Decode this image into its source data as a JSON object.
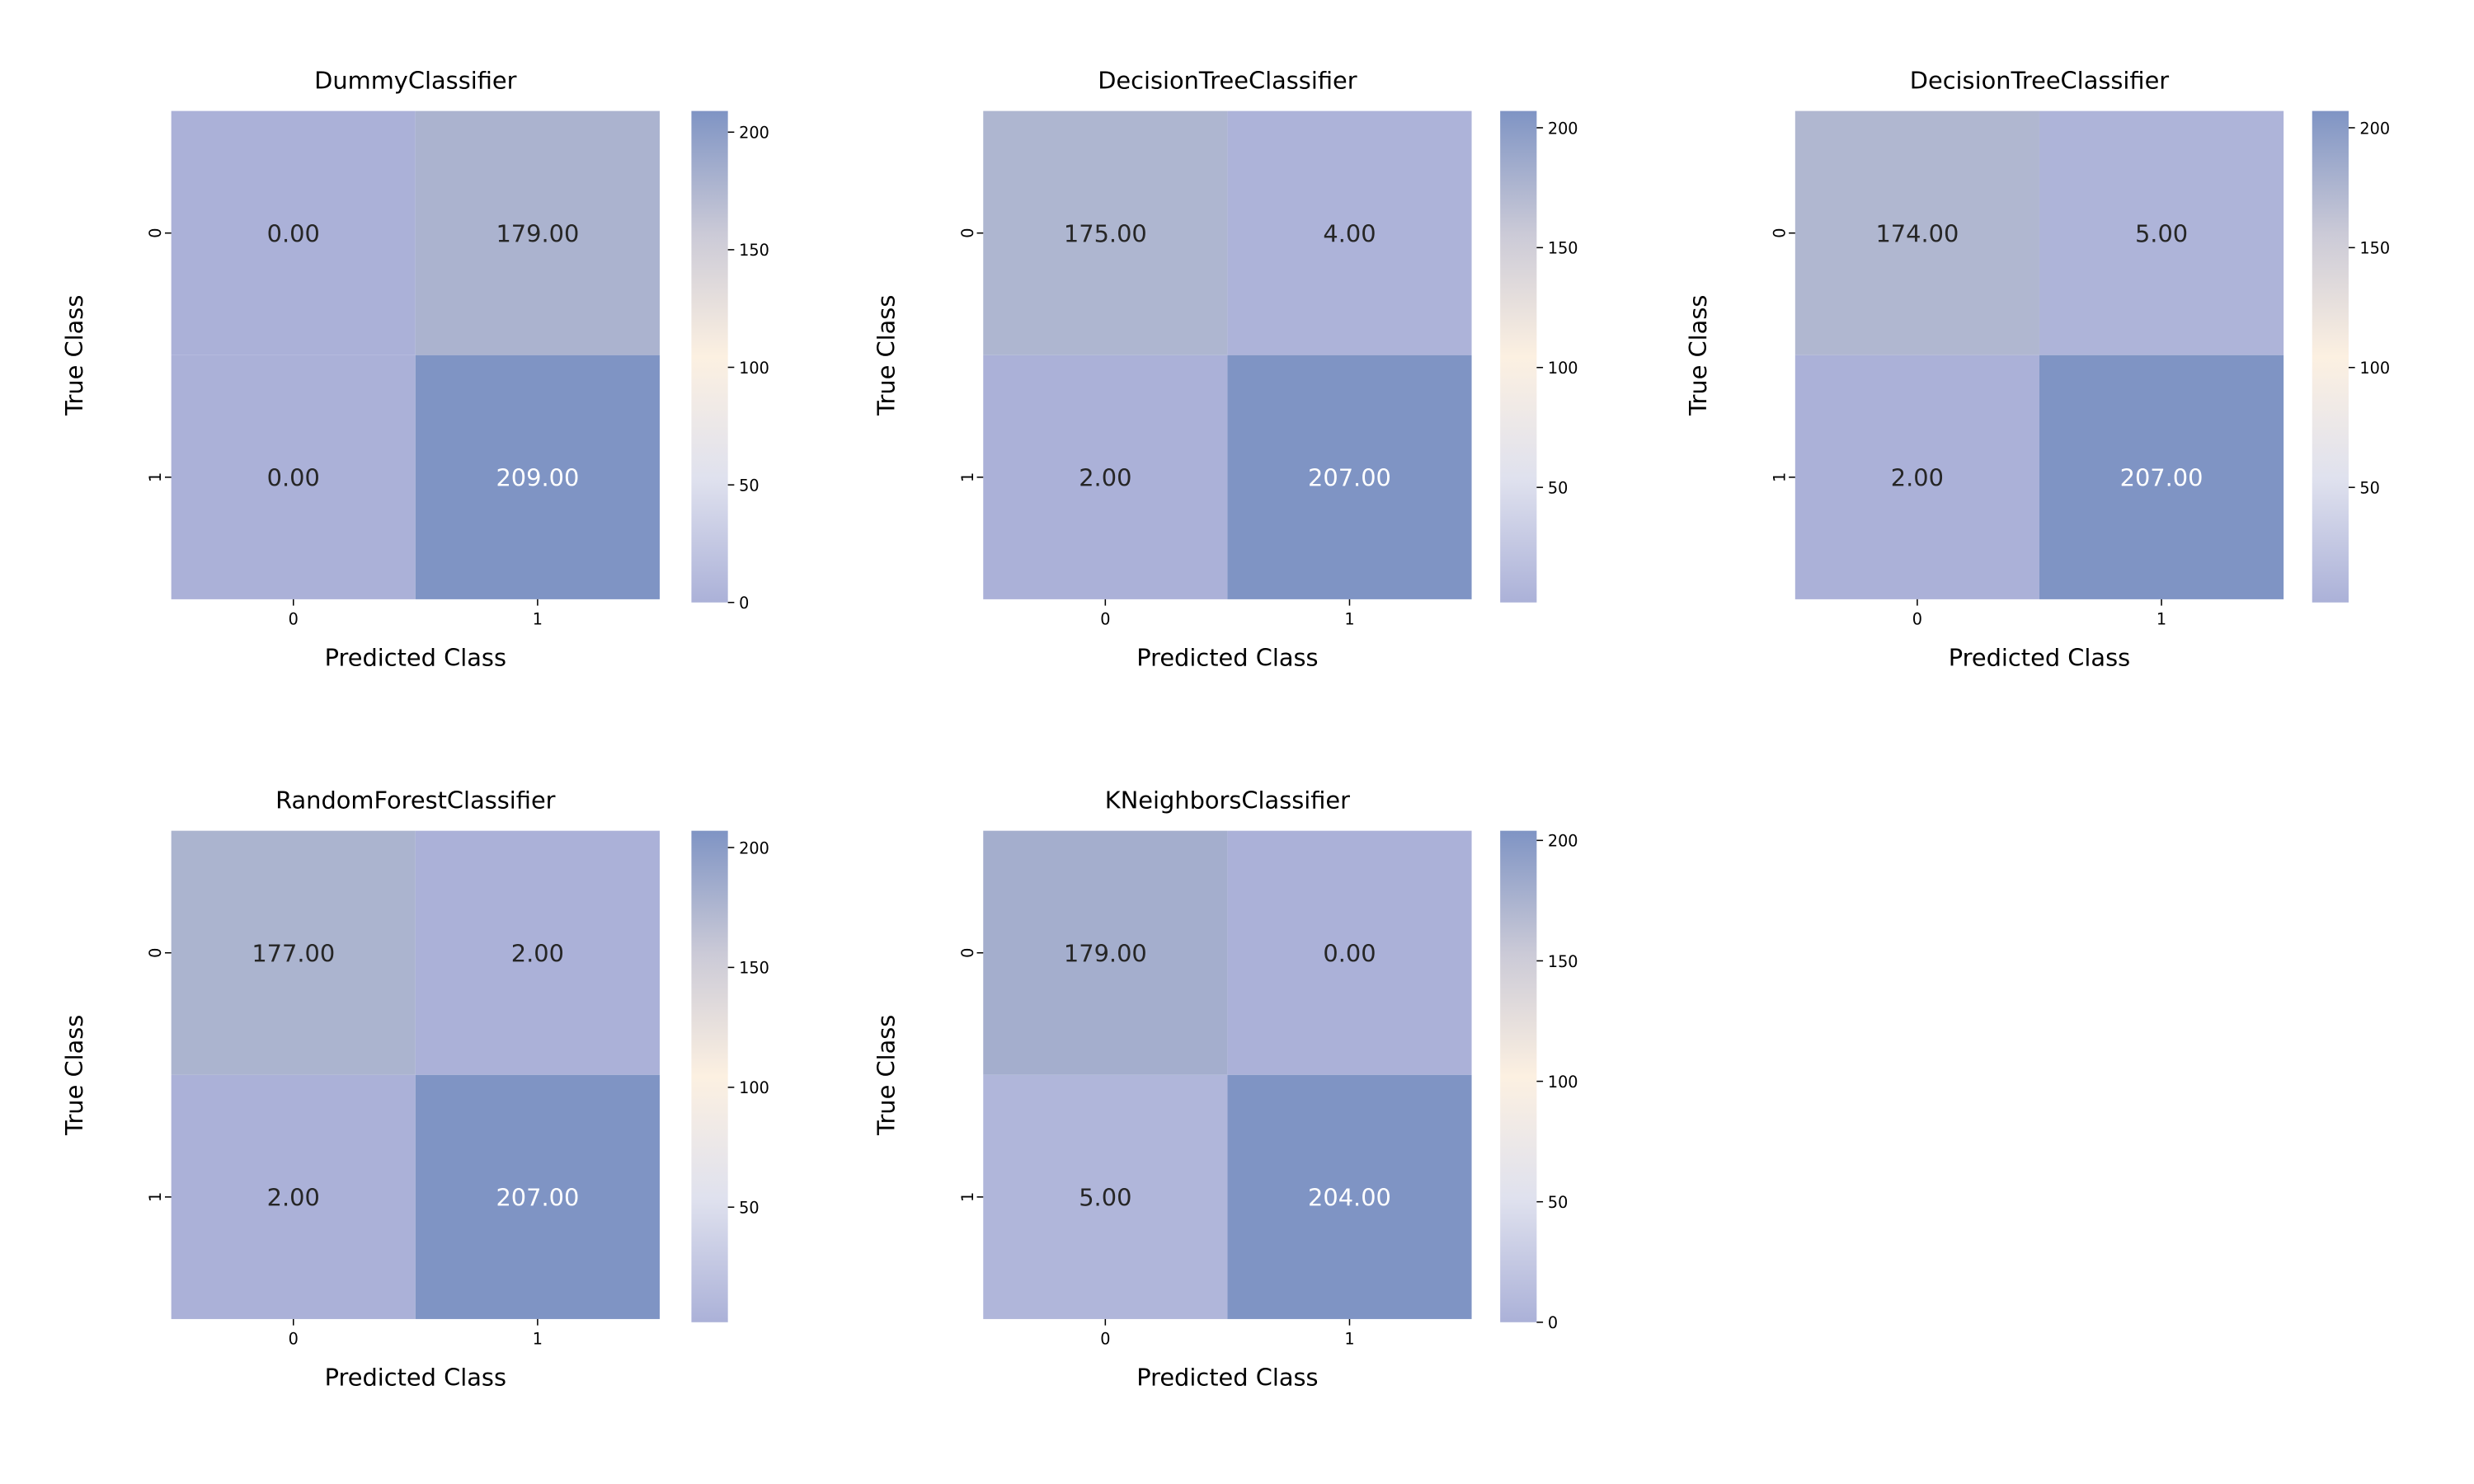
{
  "chart_data": [
    {
      "type": "heatmap",
      "title": "DummyClassifier",
      "xlabel": "Predicted Class",
      "ylabel": "True Class",
      "x_categories": [
        "0",
        "1"
      ],
      "y_categories": [
        "0",
        "1"
      ],
      "values": [
        [
          0,
          179
        ],
        [
          0,
          209
        ]
      ],
      "labels": [
        [
          "0.00",
          "179.00"
        ],
        [
          "0.00",
          "209.00"
        ]
      ],
      "vmin": 0,
      "vmax": 209,
      "colorbar_ticks": [
        0,
        50,
        100,
        150,
        200
      ],
      "colorbar_tick_labels": [
        "0",
        "50",
        "100",
        "150",
        "200"
      ]
    },
    {
      "type": "heatmap",
      "title": "DecisionTreeClassifier",
      "xlabel": "Predicted Class",
      "ylabel": "True Class",
      "x_categories": [
        "0",
        "1"
      ],
      "y_categories": [
        "0",
        "1"
      ],
      "values": [
        [
          175,
          4
        ],
        [
          2,
          207
        ]
      ],
      "labels": [
        [
          "175.00",
          "4.00"
        ],
        [
          "2.00",
          "207.00"
        ]
      ],
      "vmin": 2,
      "vmax": 207,
      "colorbar_ticks": [
        50,
        100,
        150,
        200
      ],
      "colorbar_tick_labels": [
        "50",
        "100",
        "150",
        "200"
      ]
    },
    {
      "type": "heatmap",
      "title": "DecisionTreeClassifier",
      "xlabel": "Predicted Class",
      "ylabel": "True Class",
      "x_categories": [
        "0",
        "1"
      ],
      "y_categories": [
        "0",
        "1"
      ],
      "values": [
        [
          174,
          5
        ],
        [
          2,
          207
        ]
      ],
      "labels": [
        [
          "174.00",
          "5.00"
        ],
        [
          "2.00",
          "207.00"
        ]
      ],
      "vmin": 2,
      "vmax": 207,
      "colorbar_ticks": [
        50,
        100,
        150,
        200
      ],
      "colorbar_tick_labels": [
        "50",
        "100",
        "150",
        "200"
      ]
    },
    {
      "type": "heatmap",
      "title": "RandomForestClassifier",
      "xlabel": "Predicted Class",
      "ylabel": "True Class",
      "x_categories": [
        "0",
        "1"
      ],
      "y_categories": [
        "0",
        "1"
      ],
      "values": [
        [
          177,
          2
        ],
        [
          2,
          207
        ]
      ],
      "labels": [
        [
          "177.00",
          "2.00"
        ],
        [
          "2.00",
          "207.00"
        ]
      ],
      "vmin": 2,
      "vmax": 207,
      "colorbar_ticks": [
        50,
        100,
        150,
        200
      ],
      "colorbar_tick_labels": [
        "50",
        "100",
        "150",
        "200"
      ]
    },
    {
      "type": "heatmap",
      "title": "KNeighborsClassifier",
      "xlabel": "Predicted Class",
      "ylabel": "True Class",
      "x_categories": [
        "0",
        "1"
      ],
      "y_categories": [
        "0",
        "1"
      ],
      "values": [
        [
          179,
          0
        ],
        [
          5,
          204
        ]
      ],
      "labels": [
        [
          "179.00",
          "0.00"
        ],
        [
          "5.00",
          "204.00"
        ]
      ],
      "vmin": 0,
      "vmax": 204,
      "colorbar_ticks": [
        0,
        50,
        100,
        150,
        200
      ],
      "colorbar_tick_labels": [
        "0",
        "50",
        "100",
        "150",
        "200"
      ]
    }
  ],
  "colormap": {
    "stops": [
      "#abb1d8",
      "#dfe1ee",
      "#fcf0e1",
      "#cbcad7",
      "#7f94c4"
    ],
    "text_dark": "#262626",
    "text_light": "#ffffff"
  }
}
